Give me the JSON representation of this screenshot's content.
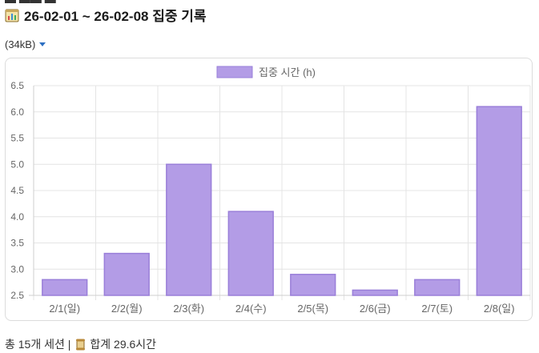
{
  "header": {
    "title": "26-02-01 ~ 26-02-08 집중 기록",
    "title_icon": "chart-icon"
  },
  "file_size": "(34kB)",
  "chart_data": {
    "type": "bar",
    "title": "",
    "legend": {
      "label": "집중 시간 (h)",
      "position": "top-center"
    },
    "categories": [
      "2/1(일)",
      "2/2(월)",
      "2/3(화)",
      "2/4(수)",
      "2/5(목)",
      "2/6(금)",
      "2/7(토)",
      "2/8(일)"
    ],
    "series": [
      {
        "name": "집중 시간 (h)",
        "values": [
          2.8,
          3.3,
          5.0,
          4.1,
          2.9,
          2.6,
          2.8,
          6.1
        ]
      }
    ],
    "ylim": [
      2.5,
      6.5
    ],
    "yticks": [
      "2.5",
      "3.0",
      "3.5",
      "4.0",
      "4.5",
      "5.0",
      "5.5",
      "6.0",
      "6.5"
    ],
    "grid": true,
    "colors": {
      "bar_fill": "#b39ce6",
      "bar_stroke": "#9a7fd9"
    }
  },
  "footer": {
    "summary_prefix": "총 15개 세션 |",
    "summary_total": "합계 29.6시간",
    "icon": "scroll-icon"
  }
}
